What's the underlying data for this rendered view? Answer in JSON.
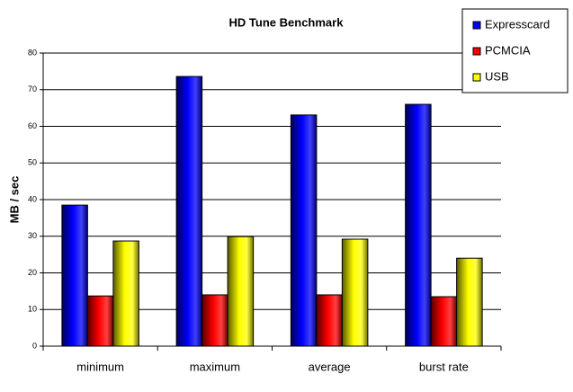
{
  "chart_data": {
    "type": "bar",
    "title": "HD Tune Benchmark",
    "y_label": "MB / sec",
    "categories": [
      "minimum",
      "maximum",
      "average",
      "burst rate"
    ],
    "series": [
      {
        "name": "Expresscard",
        "color": "#0000ff",
        "values": [
          38.5,
          73.6,
          63.1,
          66.0
        ]
      },
      {
        "name": "PCMCIA",
        "color": "#ff0000",
        "values": [
          13.7,
          14.0,
          14.0,
          13.5
        ]
      },
      {
        "name": "USB",
        "color": "#ffff00",
        "values": [
          28.7,
          29.9,
          29.2,
          24.0
        ]
      }
    ],
    "ylim": [
      0,
      80
    ],
    "yticks": [
      0,
      10,
      20,
      30,
      40,
      50,
      60,
      70,
      80
    ],
    "grid": true,
    "legend": "top-right"
  }
}
